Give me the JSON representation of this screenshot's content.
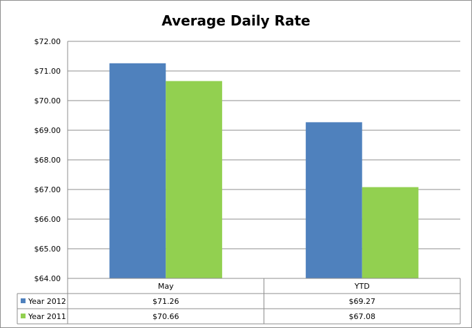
{
  "chart_data": {
    "type": "bar",
    "title": "Average Daily Rate",
    "categories": [
      "May",
      "YTD"
    ],
    "series": [
      {
        "name": "Year 2012",
        "color": "#4f81bd",
        "values": [
          71.26,
          69.27
        ],
        "labels": [
          "$71.26",
          "$69.27"
        ]
      },
      {
        "name": "Year 2011",
        "color": "#92d050",
        "values": [
          70.66,
          67.08
        ],
        "labels": [
          "$70.66",
          "$67.08"
        ]
      }
    ],
    "ylim": [
      64,
      72
    ],
    "y_ticks": [
      "$64.00",
      "$65.00",
      "$66.00",
      "$67.00",
      "$68.00",
      "$69.00",
      "$70.00",
      "$71.00",
      "$72.00"
    ],
    "grid": true,
    "legend": "data-table"
  }
}
